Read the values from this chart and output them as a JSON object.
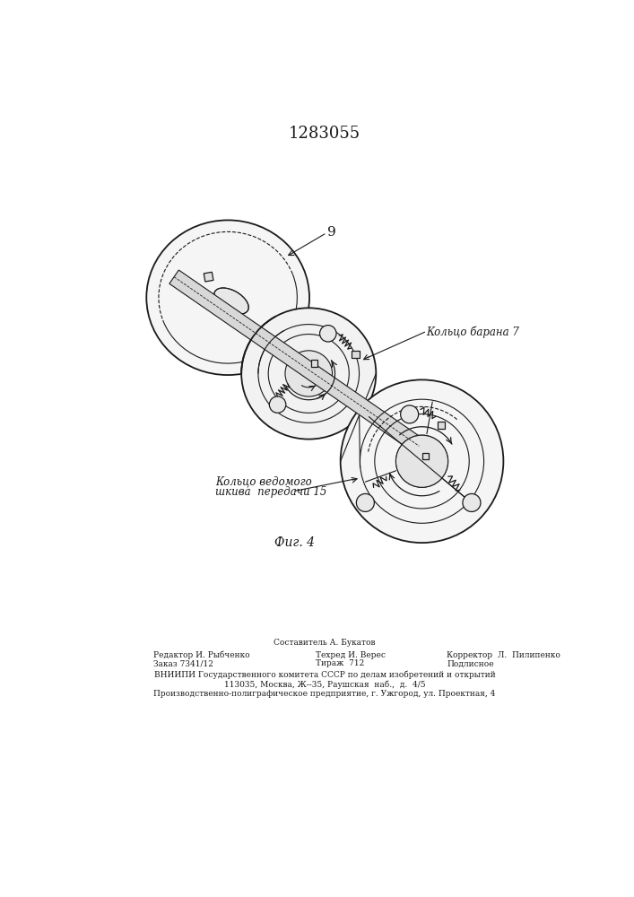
{
  "title_number": "1283055",
  "fig_label": "Фиг. 4",
  "label_9": "9",
  "label_ring_drum": "Кольцо барана 7",
  "label_ring_pulley_line1": "Кольцо ведомого",
  "label_ring_pulley_line2": "шкива  передачи 15",
  "footer_line1": "Составитель А. Букатов",
  "footer_line2_left": "Редактор И. Рыбченко",
  "footer_line2_mid": "Техред И. Верес",
  "footer_line2_right": "Корректор  Л.  Пилипенко",
  "footer_line3_left": "Заказ 7341/12",
  "footer_line3_mid": "Тираж  712",
  "footer_line3_right": "Подлисное",
  "footer_line4": "ВНИИПИ Государственного комитета СССР по делам изобретений и открытий",
  "footer_line5": "113035, Москва, Ж--35, Раушская  наб.,  д.  4/5",
  "footer_line6": "Производственно-полиграфическое предприятие, г. Ужгород, ул. Проектная, 4",
  "bg_color": "#ffffff",
  "line_color": "#1a1a1a"
}
